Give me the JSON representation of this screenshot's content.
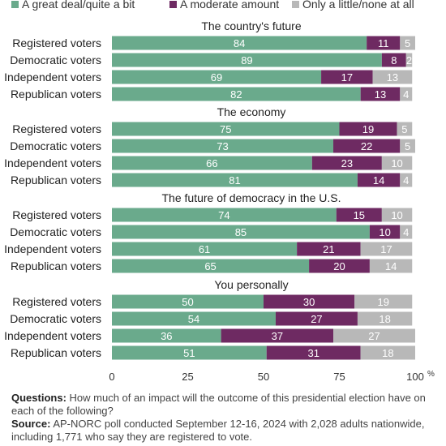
{
  "chart_data": {
    "type": "bar",
    "orientation": "horizontal",
    "stacked": true,
    "legend": {
      "placement": "top",
      "items": [
        {
          "label": "A great deal/quite a bit",
          "color": "#6aaa8c"
        },
        {
          "label": "A moderate amount",
          "color": "#6e2a62"
        },
        {
          "label": "Only a little/none at all",
          "color": "#b8b8b8"
        }
      ]
    },
    "groups": [
      {
        "title": "The country's future",
        "rows": [
          {
            "label": "Registered voters",
            "values": [
              84,
              11,
              5
            ]
          },
          {
            "label": "Democratic voters",
            "values": [
              89,
              8,
              2
            ]
          },
          {
            "label": "Independent voters",
            "values": [
              69,
              17,
              13
            ]
          },
          {
            "label": "Republican voters",
            "values": [
              82,
              13,
              4
            ]
          }
        ]
      },
      {
        "title": "The economy",
        "rows": [
          {
            "label": "Registered voters",
            "values": [
              75,
              19,
              5
            ]
          },
          {
            "label": "Democratic voters",
            "values": [
              73,
              22,
              5
            ]
          },
          {
            "label": "Independent voters",
            "values": [
              66,
              23,
              10
            ]
          },
          {
            "label": "Republican voters",
            "values": [
              81,
              14,
              4
            ]
          }
        ]
      },
      {
        "title": "The future of democracy in the U.S.",
        "rows": [
          {
            "label": "Registered voters",
            "values": [
              74,
              15,
              10
            ]
          },
          {
            "label": "Democratic voters",
            "values": [
              85,
              10,
              4
            ]
          },
          {
            "label": "Independent voters",
            "values": [
              61,
              21,
              17
            ]
          },
          {
            "label": "Republican voters",
            "values": [
              65,
              20,
              14
            ]
          }
        ]
      },
      {
        "title": "You personally",
        "rows": [
          {
            "label": "Registered voters",
            "values": [
              50,
              30,
              19
            ]
          },
          {
            "label": "Democratic voters",
            "values": [
              54,
              27,
              18
            ]
          },
          {
            "label": "Independent voters",
            "values": [
              36,
              37,
              27
            ]
          },
          {
            "label": "Republican voters",
            "values": [
              51,
              31,
              18
            ]
          }
        ]
      }
    ],
    "x_ticks": [
      "0",
      "25",
      "50",
      "75",
      "100"
    ],
    "x_unit": "%",
    "xlim": [
      0,
      100
    ]
  },
  "notes": {
    "questions_label": "Questions:",
    "questions_text": "How much of an impact will the outcome of this presidential election have on each of the following?",
    "source_label": "Source:",
    "source_text": "AP-NORC poll conducted September 12-16, 2024 with 2,028 adults nationwide, including 1,771 who say they are registered to vote."
  }
}
